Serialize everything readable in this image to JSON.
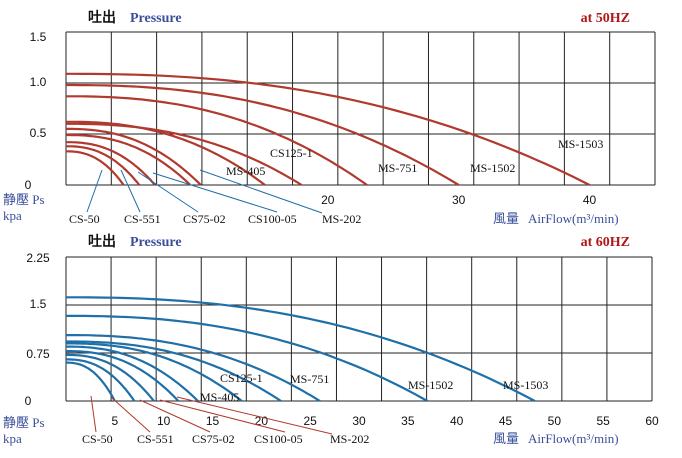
{
  "chart_data": [
    {
      "type": "line",
      "title_cn": "吐出",
      "title_en": "Pressure",
      "frequency": "at  50HZ",
      "ylabel_cn": "静壓 Ps",
      "ylabel_unit": "kpa",
      "xlabel_cn": "風量",
      "xlabel_en": "AirFlow(m³/min)",
      "ylim": [
        0,
        1.5
      ],
      "xlim": [
        0,
        45
      ],
      "yticks": [
        "0",
        "0.5",
        "1.0",
        "1.5"
      ],
      "xtick_values": [
        20,
        30,
        40
      ],
      "xticks": [
        "20",
        "30",
        "40"
      ],
      "series_color": "#b03a2e",
      "series": [
        {
          "name": "CS-50",
          "p0": 0.33,
          "qmax": 4.4
        },
        {
          "name": "CS-551",
          "p0": 0.38,
          "qmax": 5.6
        },
        {
          "name": "CS75-02",
          "p0": 0.42,
          "qmax": 6.8
        },
        {
          "name": "CS100-05",
          "p0": 0.49,
          "qmax": 9.5
        },
        {
          "name": "MS-202",
          "p0": 0.55,
          "qmax": 10.3
        },
        {
          "name": "MS-405",
          "p0": 0.62,
          "qmax": 15.2
        },
        {
          "name": "CS125-1",
          "p0": 0.6,
          "qmax": 18.0
        },
        {
          "name": "MS-751",
          "p0": 0.87,
          "qmax": 23.0
        },
        {
          "name": "MS-1502",
          "p0": 0.98,
          "qmax": 30.0
        },
        {
          "name": "MS-1503",
          "p0": 1.09,
          "qmax": 40.0
        }
      ]
    },
    {
      "type": "line",
      "title_cn": "吐出",
      "title_en": "Pressure",
      "frequency": "at  60HZ",
      "ylabel_cn": "静壓 Ps",
      "ylabel_unit": "kpa",
      "xlabel_cn": "風量",
      "xlabel_en": "AirFlow(m³/min)",
      "ylim": [
        0,
        2.25
      ],
      "xlim": [
        0,
        60
      ],
      "yticks": [
        "0",
        "0.75",
        "1.5",
        "2.25"
      ],
      "xtick_values": [
        5,
        10,
        15,
        20,
        25,
        30,
        35,
        40,
        45,
        50,
        55,
        60
      ],
      "xticks": [
        "5",
        "10",
        "15",
        "20",
        "25",
        "30",
        "35",
        "40",
        "45",
        "50",
        "55",
        "60"
      ],
      "series_color": "#1f6fa8",
      "series": [
        {
          "name": "CS-50",
          "p0": 0.6,
          "qmax": 5.0
        },
        {
          "name": "CS-551",
          "p0": 0.65,
          "qmax": 7.0
        },
        {
          "name": "CS75-02",
          "p0": 0.72,
          "qmax": 9.0
        },
        {
          "name": "CS100-05",
          "p0": 0.78,
          "qmax": 11.5
        },
        {
          "name": "MS-202",
          "p0": 0.85,
          "qmax": 13.5
        },
        {
          "name": "MS-405",
          "p0": 0.9,
          "qmax": 18.0
        },
        {
          "name": "CS125-1",
          "p0": 0.93,
          "qmax": 22.0
        },
        {
          "name": "MS-751",
          "p0": 1.03,
          "qmax": 26.0
        },
        {
          "name": "MS-1502",
          "p0": 1.33,
          "qmax": 37.0
        },
        {
          "name": "MS-1503",
          "p0": 1.62,
          "qmax": 48.0
        }
      ]
    }
  ]
}
